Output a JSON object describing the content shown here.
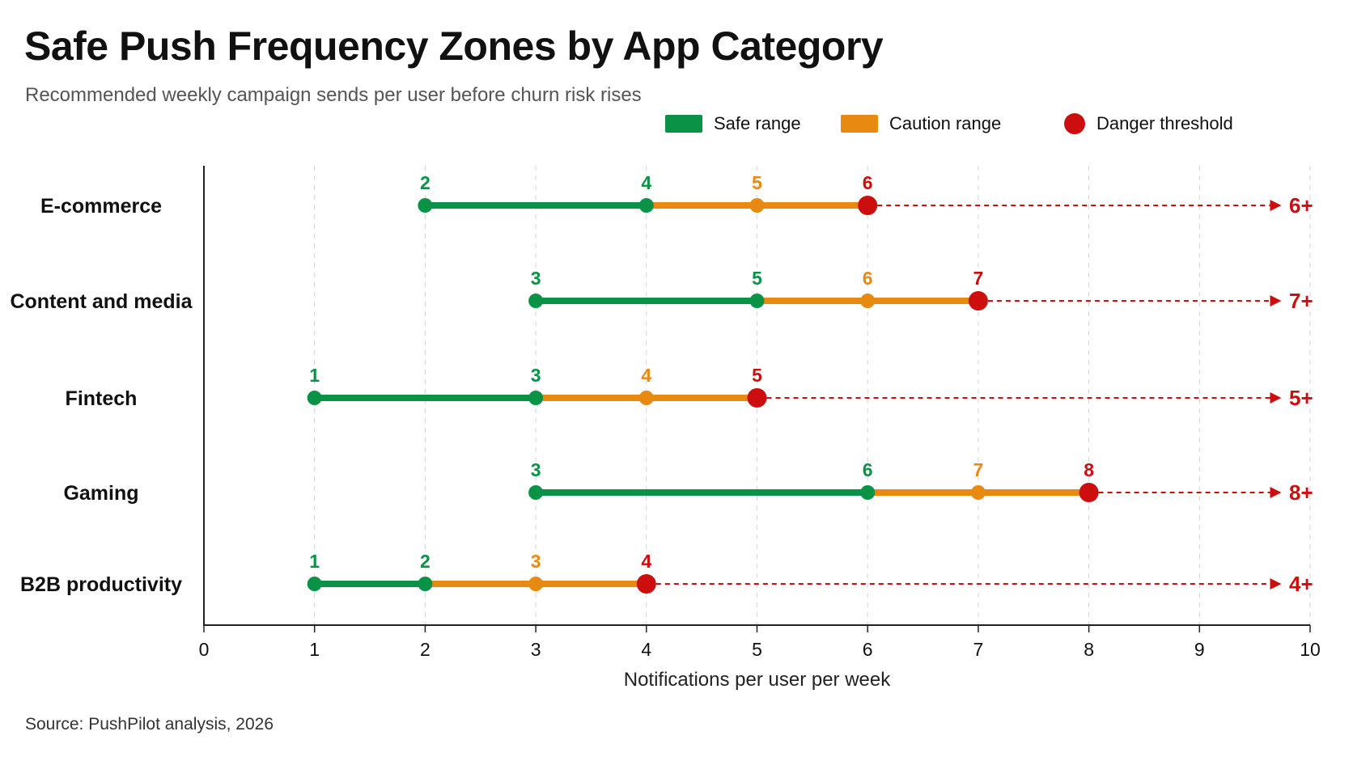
{
  "title": "Safe Push Frequency Zones by App Category",
  "subtitle": "Recommended weekly campaign sends per user before churn risk rises",
  "source": "Source: PushPilot analysis, 2026",
  "legend": {
    "safe": "Safe range",
    "caution": "Caution range",
    "danger": "Danger threshold",
    "placement": "top-right"
  },
  "colors": {
    "safe": "#0a9347",
    "caution": "#e88a12",
    "danger": "#cc0e0e",
    "axis": "#222222",
    "grid": "#d6d6d6"
  },
  "chart_data": {
    "type": "range-dumbbell",
    "title": "Safe Push Frequency Zones by App Category",
    "subtitle": "Recommended weekly campaign sends per user before churn risk rises",
    "xlabel": "Notifications per user per week",
    "ylabel": "",
    "xlim": [
      0,
      10
    ],
    "xticks": [
      0,
      1,
      2,
      3,
      4,
      5,
      6,
      7,
      8,
      9,
      10
    ],
    "grid": "vertical-dashed",
    "legend_placement": "top-right",
    "categories": [
      "E-commerce",
      "Content and media",
      "Fintech",
      "Gaming",
      "B2B productivity"
    ],
    "series": [
      {
        "name": "Safe range",
        "ranges": [
          [
            2,
            4
          ],
          [
            3,
            5
          ],
          [
            1,
            3
          ],
          [
            3,
            6
          ],
          [
            1,
            2
          ]
        ]
      },
      {
        "name": "Caution range",
        "ranges": [
          [
            4,
            6
          ],
          [
            5,
            7
          ],
          [
            3,
            5
          ],
          [
            6,
            8
          ],
          [
            2,
            4
          ]
        ]
      },
      {
        "name": "Danger threshold",
        "values": [
          6,
          7,
          5,
          8,
          4
        ]
      }
    ],
    "rows": [
      {
        "category": "E-commerce",
        "safe_start": 2,
        "safe_end": 4,
        "caution_mid": 5,
        "danger": 6,
        "labels": [
          "2",
          "4",
          "5",
          "6"
        ],
        "end_label": "6+"
      },
      {
        "category": "Content and media",
        "safe_start": 3,
        "safe_end": 5,
        "caution_mid": 6,
        "danger": 7,
        "labels": [
          "3",
          "5",
          "6",
          "7"
        ],
        "end_label": "7+"
      },
      {
        "category": "Fintech",
        "safe_start": 1,
        "safe_end": 3,
        "caution_mid": 4,
        "danger": 5,
        "labels": [
          "1",
          "3",
          "4",
          "5"
        ],
        "end_label": "5+"
      },
      {
        "category": "Gaming",
        "safe_start": 3,
        "safe_end": 6,
        "caution_mid": 7,
        "danger": 8,
        "labels": [
          "3",
          "6",
          "7",
          "8"
        ],
        "end_label": "8+"
      },
      {
        "category": "B2B productivity",
        "safe_start": 1,
        "safe_end": 2,
        "caution_mid": 3,
        "danger": 4,
        "labels": [
          "1",
          "2",
          "3",
          "4"
        ],
        "end_label": "4+"
      }
    ]
  }
}
